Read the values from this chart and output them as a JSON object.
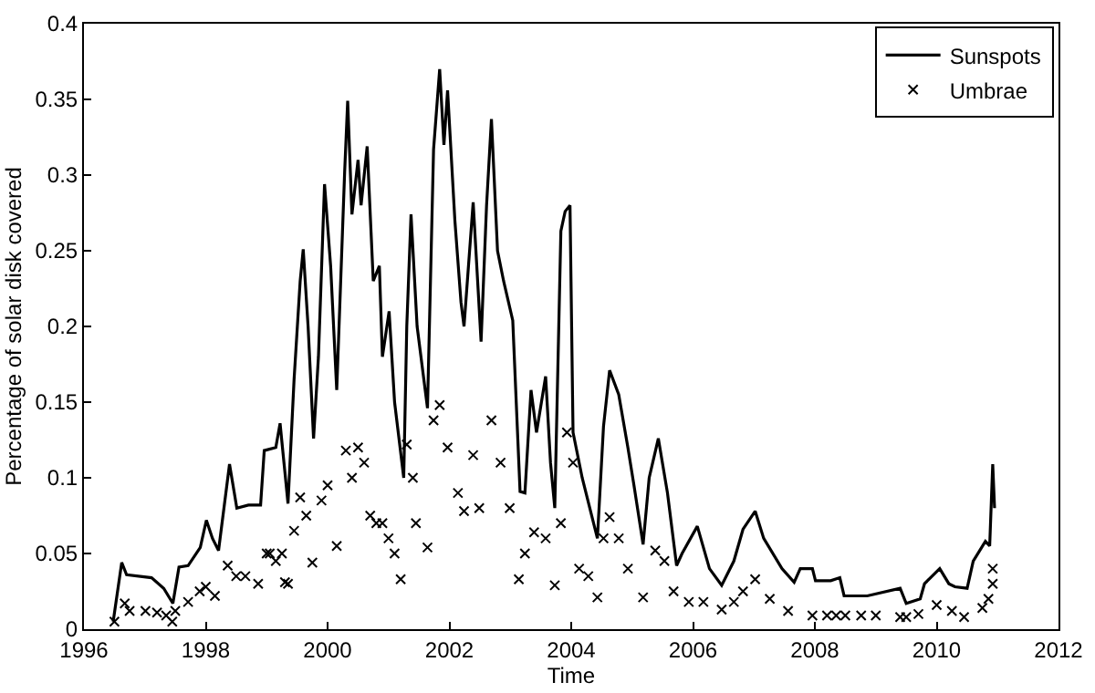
{
  "chart_data": {
    "type": "line",
    "xlabel": "Time",
    "ylabel": "Percentage of solar disk covered",
    "xlim": [
      1996,
      2012
    ],
    "xticks": [
      1996,
      1998,
      2000,
      2002,
      2004,
      2006,
      2008,
      2010,
      2012
    ],
    "ylim": [
      0,
      0.4
    ],
    "yticks": [
      0,
      0.05,
      0.1,
      0.15,
      0.2,
      0.25,
      0.3,
      0.35,
      0.4
    ],
    "legend": "top right",
    "series": [
      {
        "name": "Sunspots",
        "color": "#000000",
        "line_style": "solid",
        "marker": "none",
        "x": [
          1996.48,
          1996.62,
          1996.7,
          1997.11,
          1997.31,
          1997.46,
          1997.56,
          1997.71,
          1997.91,
          1998.01,
          1998.11,
          1998.21,
          1998.39,
          1998.51,
          1998.7,
          1998.9,
          1998.96,
          1999.15,
          1999.22,
          1999.35,
          1999.45,
          1999.55,
          1999.6,
          1999.68,
          1999.77,
          1999.85,
          1999.95,
          2000.05,
          2000.15,
          2000.28,
          2000.33,
          2000.4,
          2000.5,
          2000.55,
          2000.65,
          2000.75,
          2000.85,
          2000.9,
          2001.01,
          2001.1,
          2001.25,
          2001.3,
          2001.37,
          2001.47,
          2001.64,
          2001.74,
          2001.84,
          2001.91,
          2001.97,
          2002.09,
          2002.19,
          2002.24,
          2002.39,
          2002.52,
          2002.61,
          2002.69,
          2002.79,
          2002.89,
          2003.04,
          2003.16,
          2003.24,
          2003.34,
          2003.43,
          2003.58,
          2003.66,
          2003.73,
          2003.83,
          2003.9,
          2003.98,
          2004.03,
          2004.18,
          2004.33,
          2004.43,
          2004.53,
          2004.63,
          2004.78,
          2004.93,
          2005.03,
          2005.18,
          2005.28,
          2005.43,
          2005.58,
          2005.73,
          2005.82,
          2006.07,
          2006.27,
          2006.47,
          2006.67,
          2006.82,
          2007.02,
          2007.16,
          2007.46,
          2007.66,
          2007.76,
          2007.96,
          2008.01,
          2008.26,
          2008.41,
          2008.48,
          2008.86,
          2009.4,
          2009.5,
          2009.73,
          2009.8,
          2010.05,
          2010.2,
          2010.3,
          2010.5,
          2010.6,
          2010.8,
          2010.87,
          2010.92,
          2010.95
        ],
        "values": [
          0.005,
          0.044,
          0.036,
          0.034,
          0.027,
          0.017,
          0.041,
          0.042,
          0.054,
          0.072,
          0.06,
          0.052,
          0.109,
          0.08,
          0.082,
          0.082,
          0.118,
          0.12,
          0.136,
          0.083,
          0.165,
          0.23,
          0.251,
          0.2,
          0.126,
          0.18,
          0.294,
          0.24,
          0.158,
          0.302,
          0.349,
          0.274,
          0.31,
          0.28,
          0.319,
          0.23,
          0.24,
          0.18,
          0.21,
          0.15,
          0.1,
          0.2,
          0.274,
          0.2,
          0.146,
          0.317,
          0.37,
          0.32,
          0.356,
          0.27,
          0.216,
          0.2,
          0.282,
          0.19,
          0.28,
          0.337,
          0.25,
          0.23,
          0.204,
          0.091,
          0.09,
          0.158,
          0.13,
          0.167,
          0.11,
          0.08,
          0.263,
          0.276,
          0.28,
          0.13,
          0.1,
          0.076,
          0.06,
          0.134,
          0.171,
          0.155,
          0.12,
          0.095,
          0.056,
          0.1,
          0.126,
          0.09,
          0.042,
          0.05,
          0.068,
          0.04,
          0.029,
          0.045,
          0.066,
          0.078,
          0.06,
          0.04,
          0.031,
          0.04,
          0.04,
          0.032,
          0.032,
          0.034,
          0.022,
          0.022,
          0.027,
          0.017,
          0.02,
          0.03,
          0.04,
          0.03,
          0.028,
          0.027,
          0.045,
          0.058,
          0.055,
          0.109,
          0.08
        ]
      },
      {
        "name": "Umbrae",
        "type": "scatter",
        "color": "#000000",
        "marker": "cross",
        "x": [
          1996.5,
          1996.67,
          1996.75,
          1997.01,
          1997.2,
          1997.35,
          1997.45,
          1997.5,
          1997.71,
          1997.9,
          1998.0,
          1998.15,
          1998.36,
          1998.5,
          1998.65,
          1998.86,
          1999.0,
          1999.05,
          1999.15,
          1999.25,
          1999.3,
          1999.35,
          1999.45,
          1999.55,
          1999.65,
          1999.75,
          1999.9,
          2000.0,
          2000.15,
          2000.3,
          2000.4,
          2000.5,
          2000.6,
          2000.7,
          2000.8,
          2000.9,
          2001.0,
          2001.1,
          2001.2,
          2001.3,
          2001.4,
          2001.45,
          2001.64,
          2001.74,
          2001.84,
          2001.97,
          2002.14,
          2002.24,
          2002.39,
          2002.49,
          2002.69,
          2002.84,
          2002.99,
          2003.14,
          2003.24,
          2003.39,
          2003.58,
          2003.73,
          2003.83,
          2003.93,
          2004.03,
          2004.13,
          2004.28,
          2004.43,
          2004.53,
          2004.63,
          2004.78,
          2004.93,
          2005.18,
          2005.38,
          2005.53,
          2005.68,
          2005.93,
          2006.17,
          2006.47,
          2006.67,
          2006.82,
          2007.02,
          2007.26,
          2007.56,
          2007.96,
          2008.2,
          2008.35,
          2008.5,
          2008.76,
          2009.0,
          2009.4,
          2009.5,
          2009.7,
          2010.0,
          2010.25,
          2010.45,
          2010.75,
          2010.85,
          2010.92,
          2010.92
        ],
        "values": [
          0.005,
          0.017,
          0.012,
          0.012,
          0.011,
          0.009,
          0.005,
          0.012,
          0.018,
          0.025,
          0.028,
          0.022,
          0.042,
          0.035,
          0.035,
          0.03,
          0.05,
          0.05,
          0.045,
          0.05,
          0.031,
          0.03,
          0.065,
          0.087,
          0.075,
          0.044,
          0.085,
          0.095,
          0.055,
          0.118,
          0.1,
          0.12,
          0.11,
          0.075,
          0.07,
          0.07,
          0.06,
          0.05,
          0.033,
          0.122,
          0.1,
          0.07,
          0.054,
          0.138,
          0.148,
          0.12,
          0.09,
          0.078,
          0.115,
          0.08,
          0.138,
          0.11,
          0.08,
          0.033,
          0.05,
          0.064,
          0.06,
          0.029,
          0.07,
          0.13,
          0.11,
          0.04,
          0.035,
          0.021,
          0.06,
          0.074,
          0.06,
          0.04,
          0.021,
          0.052,
          0.045,
          0.025,
          0.018,
          0.018,
          0.013,
          0.018,
          0.025,
          0.033,
          0.02,
          0.012,
          0.009,
          0.009,
          0.009,
          0.009,
          0.009,
          0.009,
          0.008,
          0.008,
          0.01,
          0.016,
          0.012,
          0.008,
          0.014,
          0.02,
          0.03,
          0.04
        ]
      }
    ]
  }
}
